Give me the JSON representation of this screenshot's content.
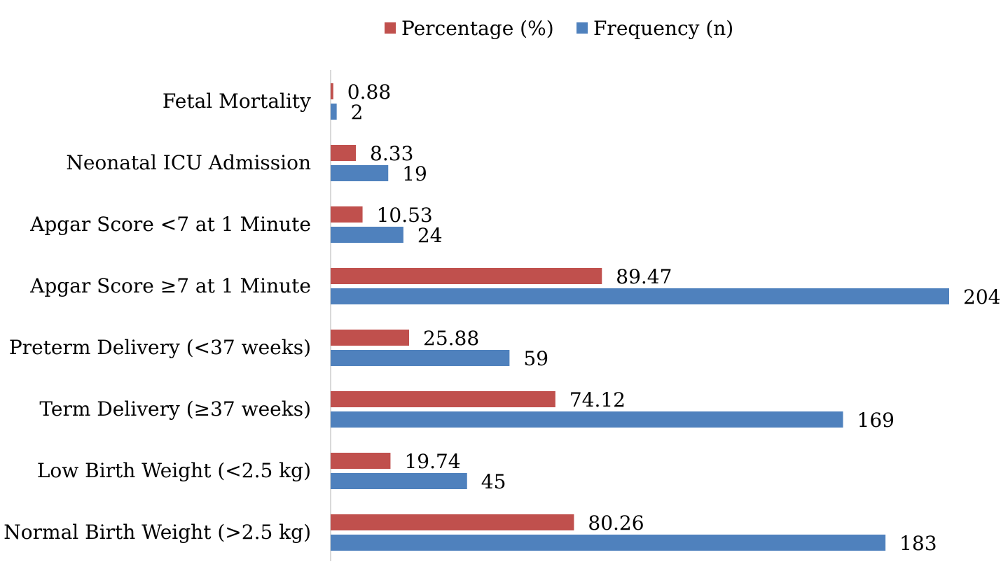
{
  "chart_data": {
    "type": "bar",
    "orientation": "horizontal",
    "categories": [
      "Fetal Mortality",
      "Neonatal ICU Admission",
      "Apgar Score <7 at 1 Minute",
      "Apgar Score ≥7 at 1 Minute",
      "Preterm Delivery (<37 weeks)",
      "Term Delivery (≥37 weeks)",
      "Low Birth Weight (<2.5 kg)",
      "Normal Birth Weight (>2.5 kg)"
    ],
    "series": [
      {
        "name": "Percentage (%)",
        "color": "#c0504d",
        "values": [
          0.88,
          8.33,
          10.53,
          89.47,
          25.88,
          74.12,
          19.74,
          80.26
        ],
        "labels": [
          "0.88",
          "8.33",
          "10.53",
          "89.47",
          "25.88",
          "74.12",
          "19.74",
          "80.26"
        ]
      },
      {
        "name": "Frequency (n)",
        "color": "#4f81bd",
        "values": [
          2,
          19,
          24,
          204,
          59,
          169,
          45,
          183
        ],
        "labels": [
          "2",
          "19",
          "24",
          "204",
          "59",
          "169",
          "45",
          "183"
        ]
      }
    ],
    "xlim": [
      0,
      204
    ],
    "grid": false,
    "legend_position": "top-center",
    "title": "",
    "xlabel": "",
    "ylabel": ""
  }
}
